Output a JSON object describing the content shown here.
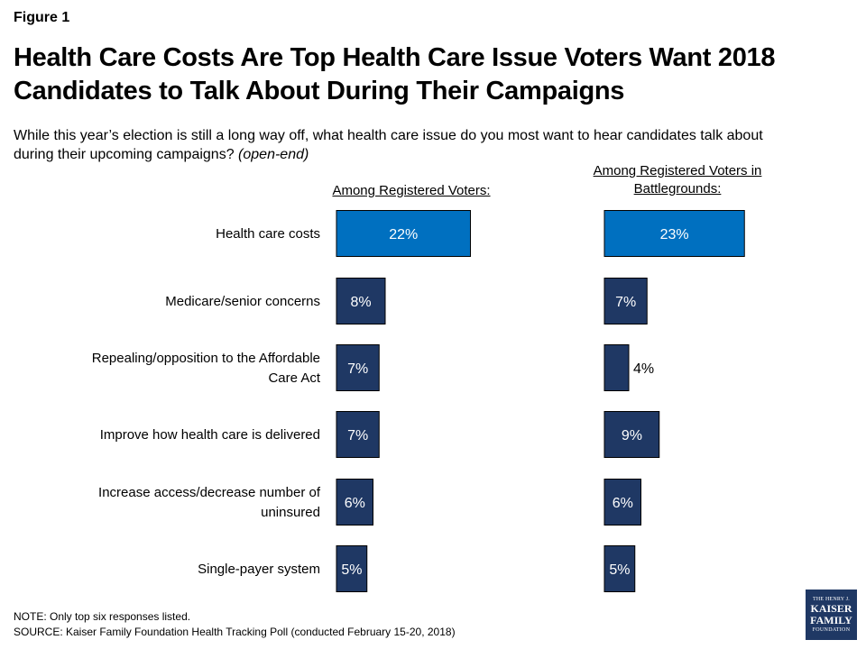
{
  "figure_label": "Figure 1",
  "title": "Health Care Costs Are Top Health Care Issue Voters Want 2018 Candidates to Talk About During Their Campaigns",
  "subtitle": "While this year’s election is still a long way off, what health care issue do you most want to hear candidates talk about during their upcoming campaigns?",
  "subtitle_paren": "(open-end)",
  "note": "NOTE: Only top six responses listed.",
  "source": "SOURCE: Kaiser Family Foundation Health Tracking Poll (conducted February 15-20, 2018)",
  "logo": {
    "line1": "THE HENRY J.",
    "line2": "KAISER",
    "line3": "FAMILY",
    "line4": "FOUNDATION"
  },
  "colors": {
    "highlight_bar": "#0070c0",
    "bar": "#1f3864",
    "bar_border": "#000000",
    "logo_bg": "#1f3864"
  },
  "chart_data": [
    {
      "type": "bar",
      "orientation": "horizontal",
      "title": "Among Registered Voters:",
      "unit": "%",
      "categories": [
        [
          "Health care costs"
        ],
        [
          "Medicare/senior concerns"
        ],
        [
          "Repealing/opposition to the Affordable",
          "Care Act"
        ],
        [
          "Improve how health care is delivered"
        ],
        [
          "Increase access/decrease number of",
          "uninsured"
        ],
        [
          "Single-payer system"
        ]
      ],
      "values": [
        22,
        8,
        7,
        7,
        6,
        5
      ],
      "labels": [
        "22%",
        "8%",
        "7%",
        "7%",
        "6%",
        "5%"
      ],
      "highlight_index": 0
    },
    {
      "type": "bar",
      "orientation": "horizontal",
      "title": "Among Registered Voters in Battlegrounds:",
      "title_lines": [
        "Among Registered Voters in",
        "Battlegrounds:"
      ],
      "unit": "%",
      "categories": [
        [
          "Health care costs"
        ],
        [
          "Medicare/senior concerns"
        ],
        [
          "Repealing/opposition to the Affordable",
          "Care Act"
        ],
        [
          "Improve how health care is delivered"
        ],
        [
          "Increase access/decrease number of",
          "uninsured"
        ],
        [
          "Single-payer system"
        ]
      ],
      "values": [
        23,
        7,
        4,
        9,
        6,
        5
      ],
      "labels": [
        "23%",
        "7%",
        "4%",
        "9%",
        "6%",
        "5%"
      ],
      "highlight_index": 0
    }
  ]
}
